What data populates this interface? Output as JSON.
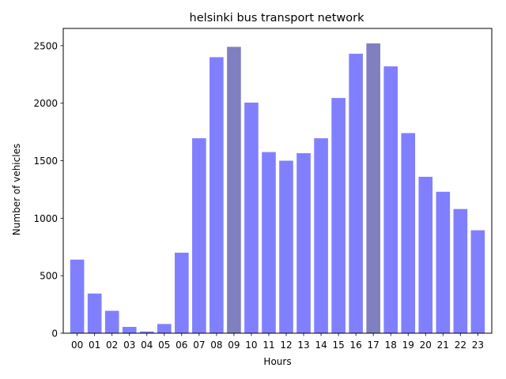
{
  "chart_data": {
    "type": "bar",
    "title": "helsinki bus transport network",
    "xlabel": "Hours",
    "ylabel": "Number of vehicles",
    "ylim": [
      0,
      2650
    ],
    "yticks": [
      0,
      500,
      1000,
      1500,
      2000,
      2500
    ],
    "grid": false,
    "legend": "none",
    "categories": [
      "00",
      "01",
      "02",
      "03",
      "04",
      "05",
      "06",
      "07",
      "08",
      "09",
      "10",
      "11",
      "12",
      "13",
      "14",
      "15",
      "16",
      "17",
      "18",
      "19",
      "20",
      "21",
      "22",
      "23"
    ],
    "values": [
      640,
      345,
      195,
      55,
      15,
      80,
      700,
      1695,
      2400,
      2490,
      2005,
      1575,
      1500,
      1565,
      1695,
      2045,
      2430,
      2520,
      2320,
      1740,
      1360,
      1230,
      1080,
      895
    ],
    "colors": {
      "bar": "#8080ff",
      "highlight": "#8080c0"
    },
    "highlighted_categories": [
      "09",
      "17"
    ]
  }
}
